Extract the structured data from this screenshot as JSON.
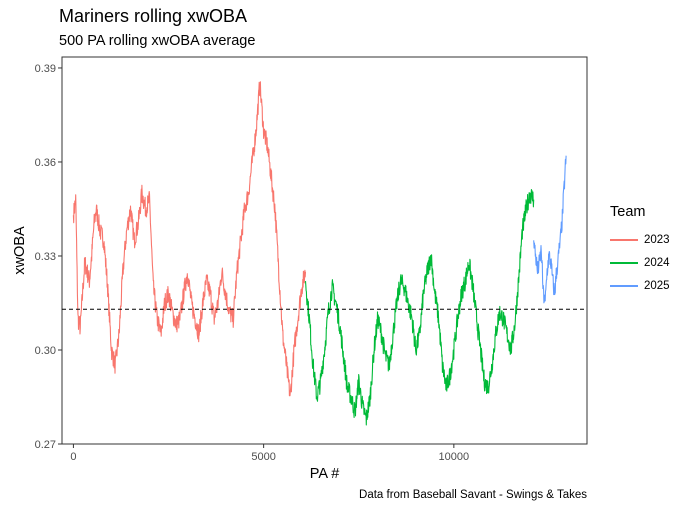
{
  "header": {
    "title": "Mariners rolling xwOBA",
    "subtitle": "500 PA rolling xwOBA average"
  },
  "caption": "Data from Baseball Savant - Swings & Takes",
  "legend": {
    "title": "Team",
    "items": [
      {
        "label": "2023",
        "color": "#F8766D"
      },
      {
        "label": "2024",
        "color": "#00BA38"
      },
      {
        "label": "2025",
        "color": "#619CFF"
      }
    ]
  },
  "chart_data": {
    "type": "line",
    "title": "Mariners rolling xwOBA",
    "subtitle": "500 PA rolling xwOBA average",
    "xlabel": "PA #",
    "ylabel": "xwOBA",
    "xlim": [
      -300,
      13500
    ],
    "ylim": [
      0.27,
      0.3935
    ],
    "x_ticks": [
      0,
      5000,
      10000
    ],
    "y_ticks": [
      0.27,
      0.3,
      0.33,
      0.36,
      0.39
    ],
    "y_tick_labels": [
      "0.27",
      "0.30",
      "0.33",
      "0.36",
      "0.39"
    ],
    "reference_line": {
      "y": 0.313,
      "style": "dashed",
      "color": "#000000"
    },
    "grid": false,
    "legend_position": "right",
    "series": [
      {
        "name": "2023",
        "color": "#F8766D",
        "x": [
          0,
          60,
          120,
          180,
          240,
          300,
          360,
          420,
          480,
          540,
          600,
          700,
          800,
          900,
          1000,
          1100,
          1200,
          1300,
          1400,
          1500,
          1600,
          1700,
          1800,
          1900,
          2000,
          2100,
          2200,
          2300,
          2400,
          2500,
          2600,
          2700,
          2800,
          2900,
          3000,
          3100,
          3200,
          3300,
          3400,
          3500,
          3600,
          3700,
          3800,
          3900,
          4000,
          4100,
          4200,
          4300,
          4400,
          4500,
          4600,
          4700,
          4800,
          4900,
          5000,
          5100,
          5200,
          5300,
          5400,
          5500,
          5600,
          5700,
          5800,
          5900,
          6000,
          6100
        ],
        "y": [
          0.343,
          0.348,
          0.31,
          0.307,
          0.318,
          0.328,
          0.325,
          0.322,
          0.33,
          0.34,
          0.345,
          0.338,
          0.335,
          0.32,
          0.3,
          0.295,
          0.305,
          0.325,
          0.338,
          0.345,
          0.335,
          0.34,
          0.35,
          0.345,
          0.348,
          0.32,
          0.31,
          0.305,
          0.315,
          0.318,
          0.312,
          0.308,
          0.31,
          0.318,
          0.325,
          0.315,
          0.31,
          0.305,
          0.315,
          0.322,
          0.318,
          0.31,
          0.315,
          0.325,
          0.318,
          0.312,
          0.31,
          0.325,
          0.335,
          0.345,
          0.35,
          0.36,
          0.37,
          0.385,
          0.37,
          0.365,
          0.355,
          0.345,
          0.325,
          0.305,
          0.295,
          0.285,
          0.3,
          0.31,
          0.32,
          0.325
        ]
      },
      {
        "name": "2024",
        "color": "#00BA38",
        "x": [
          6100,
          6200,
          6300,
          6400,
          6500,
          6600,
          6700,
          6800,
          6900,
          7000,
          7100,
          7200,
          7300,
          7400,
          7500,
          7600,
          7700,
          7800,
          7900,
          8000,
          8100,
          8200,
          8300,
          8400,
          8500,
          8600,
          8700,
          8800,
          8900,
          9000,
          9100,
          9200,
          9300,
          9400,
          9500,
          9600,
          9700,
          9800,
          9900,
          10000,
          10100,
          10200,
          10300,
          10400,
          10500,
          10600,
          10700,
          10800,
          10900,
          11000,
          11100,
          11200,
          11300,
          11400,
          11500,
          11600,
          11700,
          11800,
          11900,
          12000,
          12100
        ],
        "y": [
          0.322,
          0.31,
          0.295,
          0.285,
          0.29,
          0.3,
          0.312,
          0.32,
          0.315,
          0.308,
          0.298,
          0.288,
          0.285,
          0.28,
          0.29,
          0.282,
          0.278,
          0.285,
          0.3,
          0.31,
          0.305,
          0.298,
          0.295,
          0.305,
          0.315,
          0.322,
          0.32,
          0.315,
          0.31,
          0.3,
          0.305,
          0.318,
          0.325,
          0.33,
          0.318,
          0.31,
          0.295,
          0.288,
          0.292,
          0.3,
          0.31,
          0.318,
          0.322,
          0.328,
          0.32,
          0.31,
          0.3,
          0.29,
          0.288,
          0.295,
          0.305,
          0.312,
          0.31,
          0.305,
          0.3,
          0.308,
          0.322,
          0.338,
          0.345,
          0.35,
          0.348
        ]
      },
      {
        "name": "2025",
        "color": "#619CFF",
        "x": [
          12100,
          12150,
          12200,
          12250,
          12300,
          12350,
          12400,
          12450,
          12500,
          12550,
          12600,
          12650,
          12700,
          12750,
          12800,
          12850,
          12900,
          12950
        ],
        "y": [
          0.335,
          0.33,
          0.325,
          0.328,
          0.332,
          0.318,
          0.315,
          0.325,
          0.33,
          0.328,
          0.322,
          0.318,
          0.325,
          0.33,
          0.335,
          0.342,
          0.352,
          0.362
        ]
      }
    ]
  }
}
